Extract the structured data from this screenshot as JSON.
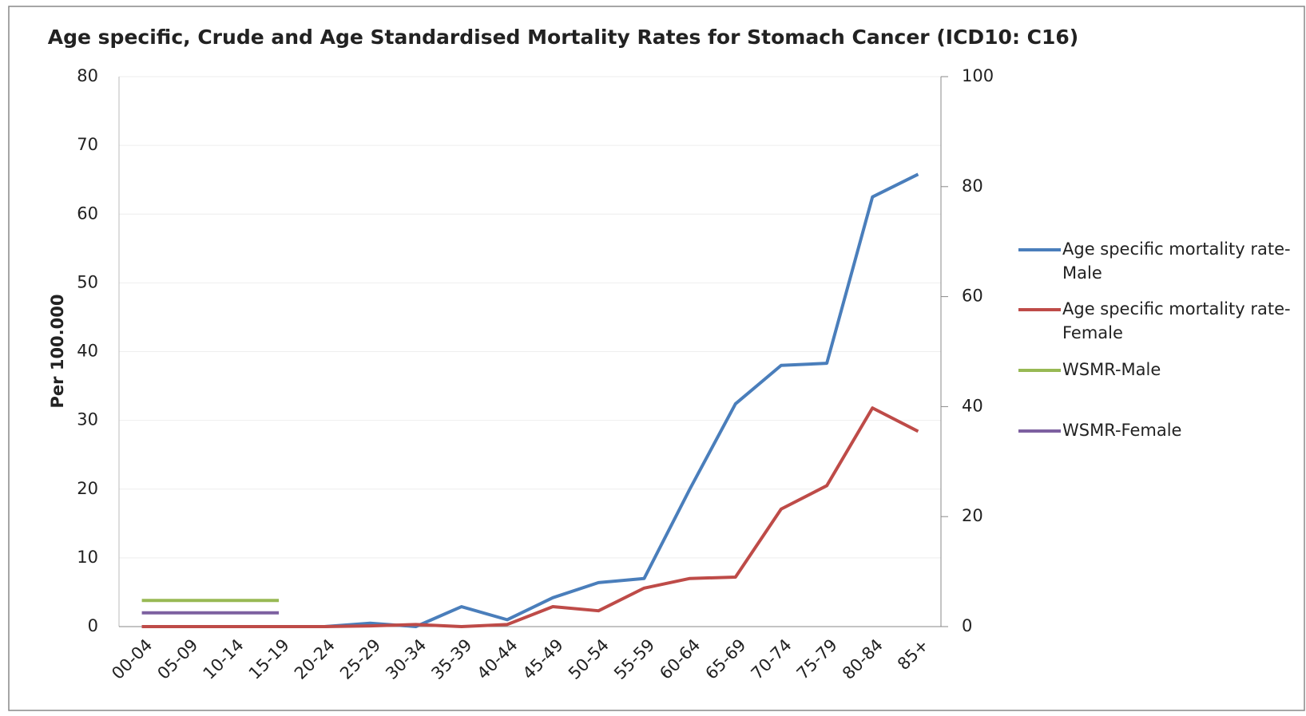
{
  "chart_data": {
    "type": "line",
    "title": "Age specific, Crude and Age Standardised Mortality Rates for Stomach Cancer (ICD10: C16)",
    "y_label": "Per 100.000",
    "categories": [
      "00-04",
      "05-09",
      "10-14",
      "15-19",
      "20-24",
      "25-29",
      "30-34",
      "35-39",
      "40-44",
      "45-49",
      "50-54",
      "55-59",
      "60-64",
      "65-69",
      "70-74",
      "75-79",
      "80-84",
      "85+"
    ],
    "series": [
      {
        "name": "Age specific mortality rate-Male",
        "color": "#4a7ebb",
        "values": [
          0,
          0,
          0,
          0,
          0,
          0.5,
          0,
          2.9,
          1,
          4.2,
          6.4,
          7,
          20,
          32.4,
          38,
          38.3,
          62.5,
          65.8
        ]
      },
      {
        "name": "Age specific mortality rate-Female",
        "color": "#be4b48",
        "values": [
          0,
          0,
          0,
          0,
          0,
          0.1,
          0.3,
          0,
          0.3,
          2.9,
          2.3,
          5.6,
          7,
          7.2,
          17.1,
          20.5,
          31.8,
          28.4
        ]
      },
      {
        "name": "WSMR-Male",
        "color": "#98b954",
        "values": [
          3.8,
          3.8,
          3.8,
          3.8,
          null,
          null,
          null,
          null,
          null,
          null,
          null,
          null,
          null,
          null,
          null,
          null,
          null,
          null
        ]
      },
      {
        "name": "WSMR-Female",
        "color": "#7d60a0",
        "values": [
          2,
          2,
          2,
          2,
          null,
          null,
          null,
          null,
          null,
          null,
          null,
          null,
          null,
          null,
          null,
          null,
          null,
          null
        ]
      }
    ],
    "ylim": [
      0,
      80
    ],
    "yticks": [
      0,
      10,
      20,
      30,
      40,
      50,
      60,
      70,
      80
    ],
    "y2lim": [
      0,
      100
    ],
    "y2ticks": [
      0,
      20,
      40,
      60,
      80,
      100
    ],
    "grid": true,
    "legend": "right"
  }
}
